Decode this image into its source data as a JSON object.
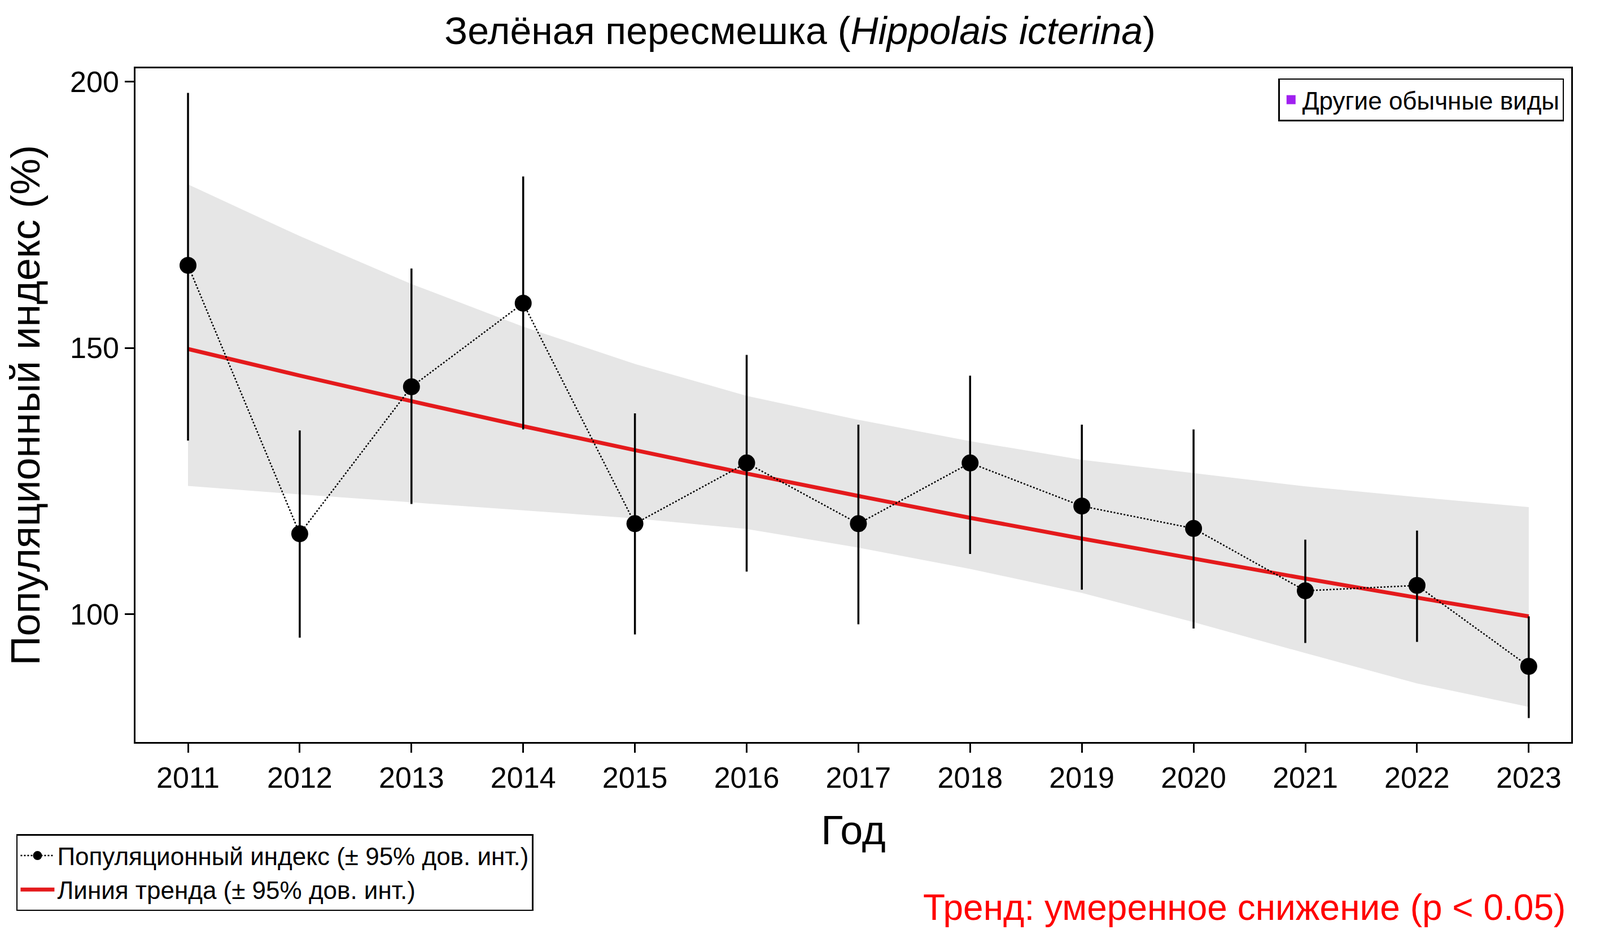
{
  "chart_data": {
    "type": "line",
    "title": "Зелёная пересмешка (Hippolais icterina)",
    "x_label": "Год",
    "y_label": "Популяционный индекс (%)",
    "x": [
      2011,
      2012,
      2013,
      2014,
      2015,
      2016,
      2017,
      2018,
      2019,
      2020,
      2021,
      2022,
      2023
    ],
    "xlim": [
      2010.53,
      2023.38
    ],
    "xticks": [
      2011,
      2012,
      2013,
      2014,
      2015,
      2016,
      2017,
      2018,
      2019,
      2020,
      2021,
      2022,
      2023
    ],
    "ylim": [
      76,
      202.5
    ],
    "yticks": [
      100,
      150,
      200
    ],
    "grid": false,
    "legend": "bottom left",
    "series": [
      {
        "name": "Популяционный индекс (± 95% дов. инт.)",
        "color": "#000000",
        "marker": "circle",
        "line_style": "dotted",
        "values": [
          165.5,
          115.1,
          142.7,
          158.4,
          117.0,
          128.4,
          117.0,
          128.4,
          120.3,
          116.1,
          104.4,
          105.4,
          90.2
        ],
        "ci_low": [
          132.6,
          95.6,
          120.7,
          134.7,
          96.2,
          108.0,
          98.1,
          111.3,
          104.6,
          97.3,
          94.6,
          94.8,
          80.5
        ],
        "ci_high": [
          197.9,
          134.5,
          164.9,
          182.2,
          137.7,
          148.7,
          135.6,
          144.8,
          135.6,
          134.7,
          114.0,
          115.7,
          99.6
        ]
      },
      {
        "name": "Линия тренда (± 95% дов. инт.)",
        "color": "#e41a1c",
        "line_style": "solid",
        "values": [
          149.8,
          144.8,
          140.0,
          135.3,
          130.8,
          126.4,
          122.2,
          118.1,
          114.2,
          110.4,
          106.7,
          103.1,
          99.6
        ],
        "ci_low": [
          124.1,
          122.5,
          121.0,
          119.5,
          118.0,
          116.0,
          112.5,
          108.5,
          104.0,
          98.5,
          92.7,
          87.0,
          82.6
        ],
        "ci_high": [
          180.7,
          171.0,
          162.0,
          154.0,
          147.0,
          141.0,
          136.5,
          132.5,
          129.0,
          126.5,
          124.0,
          122.0,
          120.1
        ]
      }
    ],
    "group": {
      "name": "Другие обычные виды",
      "color": "#a020f0",
      "marker": "square"
    },
    "annotations": [
      {
        "text": "Тренд: умеренное снижение (p < 0.05)",
        "color": "#ff0000"
      }
    ]
  }
}
